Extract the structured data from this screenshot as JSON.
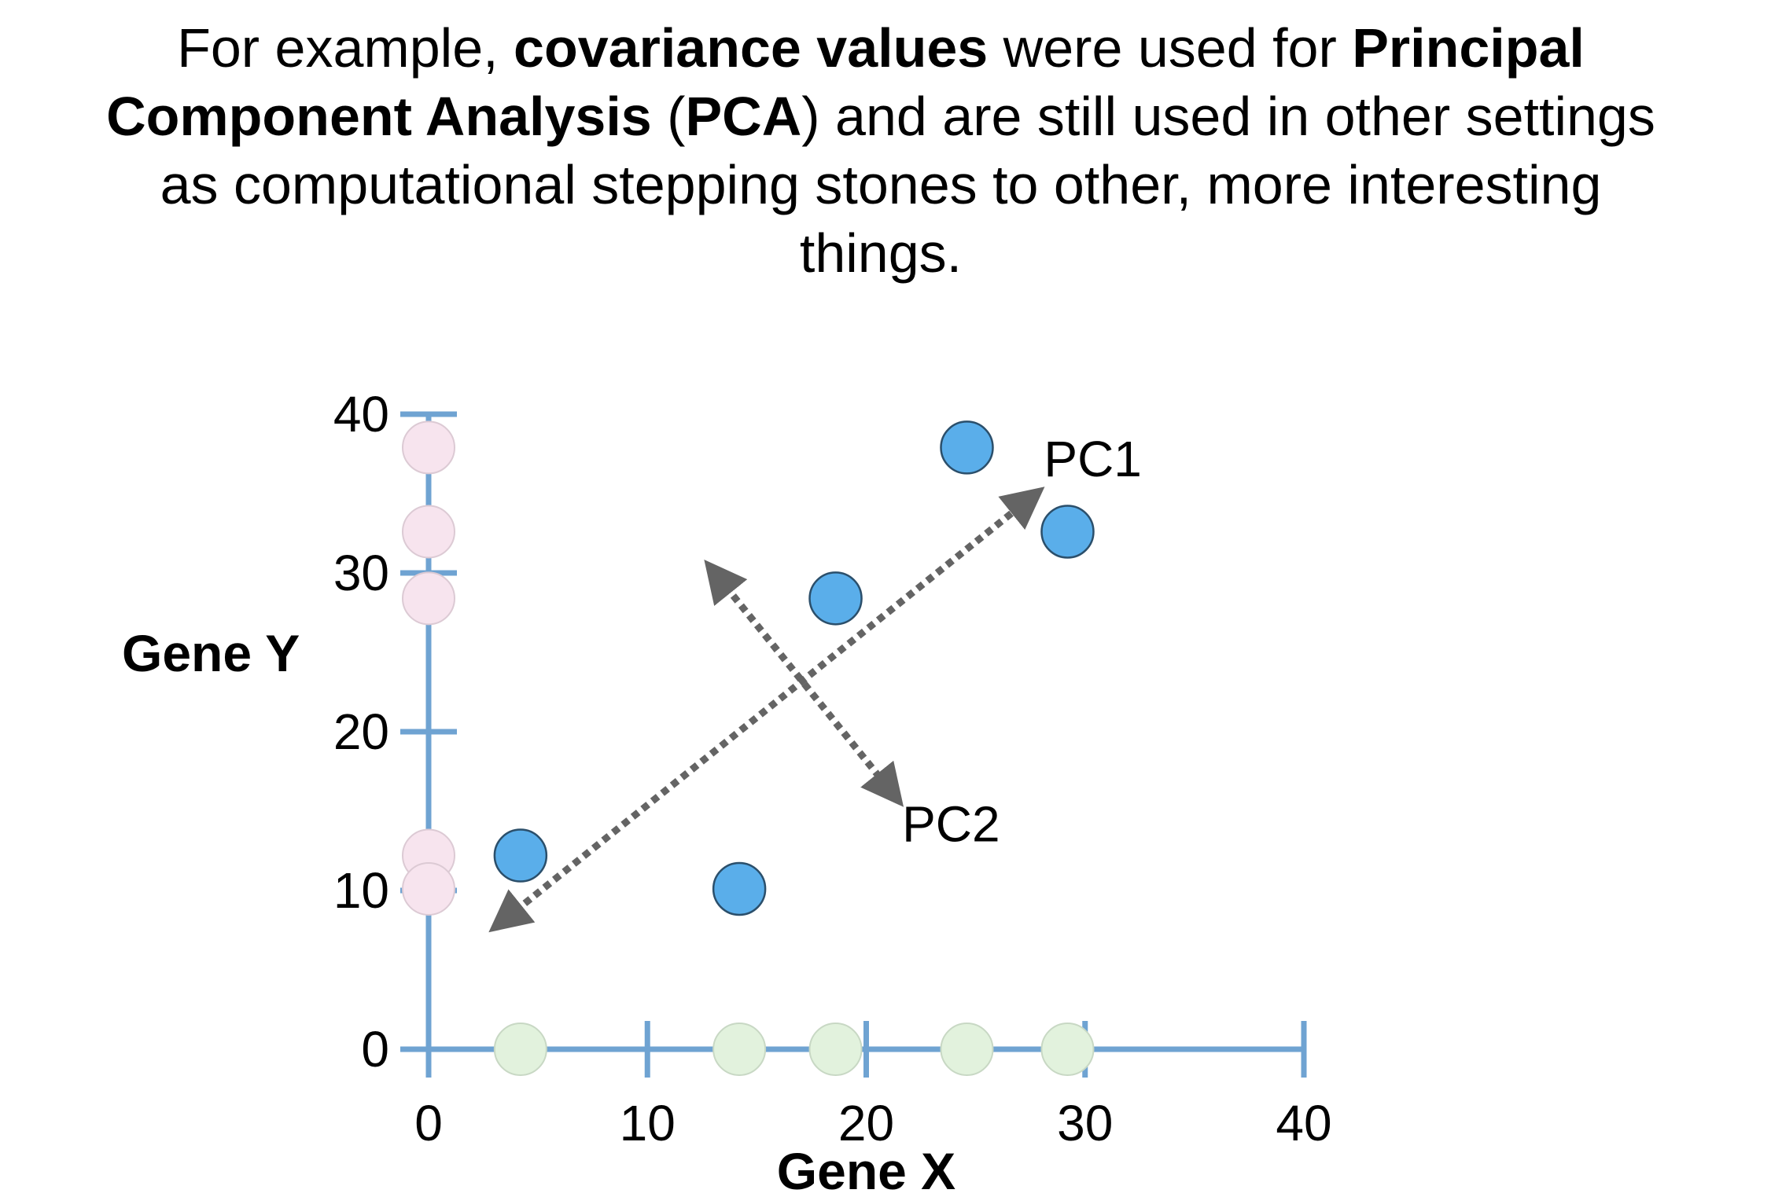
{
  "caption": {
    "p1": "For example, ",
    "b1": "covariance values",
    "p2": " were used for ",
    "b2": "Principal Component Analysis",
    "p3": " (",
    "b3": "PCA",
    "p4": ") and are still used in other settings as computational stepping stones to other, more interesting things."
  },
  "chart_data": {
    "type": "scatter",
    "xlabel": "Gene X",
    "ylabel": "Gene Y",
    "xlim": [
      0,
      40
    ],
    "ylim": [
      0,
      40
    ],
    "xticks": [
      0,
      10,
      20,
      30,
      40
    ],
    "yticks": [
      0,
      10,
      20,
      30,
      40
    ],
    "points": [
      {
        "x": 4.2,
        "y": 12.2
      },
      {
        "x": 14.2,
        "y": 10.1
      },
      {
        "x": 18.6,
        "y": 28.4
      },
      {
        "x": 24.6,
        "y": 37.9
      },
      {
        "x": 29.2,
        "y": 32.6
      }
    ],
    "projection_colors": {
      "points": "#5aaeea",
      "x_projection": "#e2f2dd",
      "y_projection": "#f7e4ee",
      "axis": "#6fa3d2",
      "arrows": "#646464"
    },
    "annotations": [
      {
        "label": "PC1",
        "from": [
          3.5,
          8.2
        ],
        "to": [
          27.4,
          34.6
        ]
      },
      {
        "label": "PC2",
        "from": [
          13.2,
          29.8
        ],
        "to": [
          21.1,
          16.3
        ]
      }
    ]
  }
}
